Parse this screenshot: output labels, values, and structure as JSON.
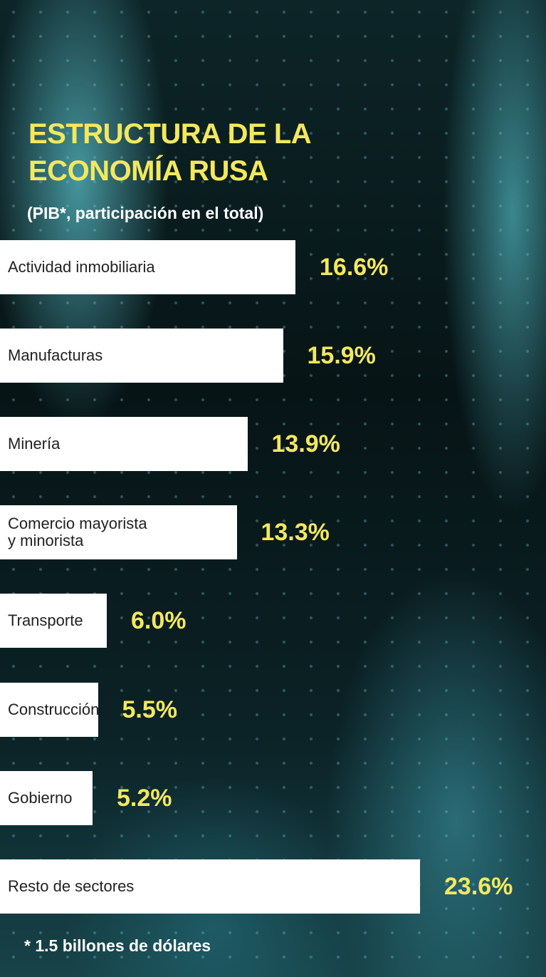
{
  "chart_data": {
    "type": "bar",
    "title": "ESTRUCTURA DE LA\nECONOMÍA RUSA",
    "subtitle": "(PIB*, participación en el total)",
    "categories": [
      "Actividad inmobiliaria",
      "Manufacturas",
      "Minería",
      "Comercio mayorista\ny minorista",
      "Transporte",
      "Construcción",
      "Gobierno",
      "Resto de sectores"
    ],
    "values": [
      16.6,
      15.9,
      13.9,
      13.3,
      6.0,
      5.5,
      5.2,
      23.6
    ],
    "value_labels": [
      "16.6%",
      "15.9%",
      "13.9%",
      "13.3%",
      "6.0%",
      "5.5%",
      "5.2%",
      "23.6%"
    ],
    "color": "#ffffff",
    "label_color": "#f3e85e",
    "footnote": "* 1.5 billones de dólares"
  }
}
